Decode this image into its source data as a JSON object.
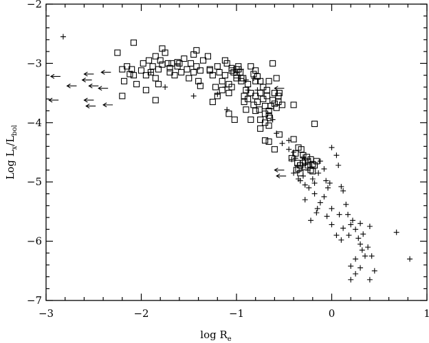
{
  "chart_data": {
    "type": "scatter",
    "title": "",
    "xlabel": {
      "main": "log R",
      "sub": "e"
    },
    "ylabel": {
      "main": "Log L",
      "sub1": "x",
      "sep": "/L",
      "sub2": "bol"
    },
    "xlim": [
      -3,
      1
    ],
    "ylim": [
      -7,
      -2
    ],
    "xticks": [
      -3,
      -2,
      -1,
      0,
      1
    ],
    "yticks": [
      -7,
      -6,
      -5,
      -4,
      -3,
      -2
    ],
    "xtick_labels": [
      "−3",
      "−2",
      "−1",
      "0",
      "1"
    ],
    "ytick_labels": [
      "−7",
      "−6",
      "−5",
      "−4",
      "−3",
      "−2"
    ],
    "grid": false,
    "legend": "none",
    "series": [
      {
        "marker": "square",
        "points": [
          [
            -2.25,
            -2.82
          ],
          [
            -2.08,
            -2.65
          ],
          [
            -2.15,
            -3.05
          ],
          [
            -2.12,
            -3.18
          ],
          [
            -2.18,
            -3.3
          ],
          [
            -2.2,
            -3.1
          ],
          [
            -2.05,
            -3.35
          ],
          [
            -2.2,
            -3.55
          ],
          [
            -2.08,
            -3.2
          ],
          [
            -2.0,
            -3.12
          ],
          [
            -1.98,
            -3.0
          ],
          [
            -1.92,
            -2.95
          ],
          [
            -1.88,
            -3.05
          ],
          [
            -1.85,
            -3.25
          ],
          [
            -1.95,
            -3.45
          ],
          [
            -1.82,
            -3.1
          ],
          [
            -1.8,
            -2.95
          ],
          [
            -1.78,
            -2.75
          ],
          [
            -1.75,
            -2.82
          ],
          [
            -1.72,
            -3.0
          ],
          [
            -1.7,
            -3.15
          ],
          [
            -1.82,
            -3.35
          ],
          [
            -1.68,
            -3.0
          ],
          [
            -1.65,
            -3.2
          ],
          [
            -1.62,
            -3.05
          ],
          [
            -1.6,
            -3.0
          ],
          [
            -1.78,
            -3.02
          ],
          [
            -1.85,
            -2.88
          ],
          [
            -1.58,
            -3.15
          ],
          [
            -1.55,
            -2.92
          ],
          [
            -1.52,
            -3.1
          ],
          [
            -1.5,
            -3.25
          ],
          [
            -1.48,
            -3.0
          ],
          [
            -1.45,
            -3.15
          ],
          [
            -1.42,
            -3.05
          ],
          [
            -1.4,
            -3.3
          ],
          [
            -1.38,
            -3.12
          ],
          [
            -1.42,
            -2.78
          ],
          [
            -1.3,
            -2.88
          ],
          [
            -1.28,
            -3.12
          ],
          [
            -1.25,
            -3.2
          ],
          [
            -1.22,
            -3.4
          ],
          [
            -1.2,
            -3.05
          ],
          [
            -1.18,
            -3.15
          ],
          [
            -1.15,
            -3.3
          ],
          [
            -1.12,
            -3.2
          ],
          [
            -1.1,
            -3.0
          ],
          [
            -1.08,
            -3.35
          ],
          [
            -1.05,
            -3.4
          ],
          [
            -1.03,
            -3.15
          ],
          [
            -1.0,
            -3.2
          ],
          [
            -0.98,
            -3.05
          ],
          [
            -0.95,
            -3.3
          ],
          [
            -0.92,
            -3.55
          ],
          [
            -0.9,
            -3.45
          ],
          [
            -0.88,
            -3.35
          ],
          [
            -0.85,
            -3.5
          ],
          [
            -0.82,
            -3.7
          ],
          [
            -0.8,
            -3.55
          ],
          [
            -0.78,
            -3.65
          ],
          [
            -0.75,
            -3.5
          ],
          [
            -0.72,
            -3.6
          ],
          [
            -0.7,
            -3.72
          ],
          [
            -0.68,
            -3.55
          ],
          [
            -0.66,
            -3.8
          ],
          [
            -0.65,
            -3.92
          ],
          [
            -0.64,
            -3.72
          ],
          [
            -0.62,
            -3.62
          ],
          [
            -0.6,
            -3.68
          ],
          [
            -0.58,
            -3.75
          ],
          [
            -0.56,
            -3.65
          ],
          [
            -0.55,
            -3.5
          ],
          [
            -0.88,
            -3.6
          ],
          [
            -0.9,
            -3.78
          ],
          [
            -1.02,
            -3.95
          ],
          [
            -1.08,
            -3.85
          ],
          [
            -1.25,
            -3.65
          ],
          [
            -1.12,
            -2.95
          ],
          [
            -1.05,
            -3.08
          ],
          [
            -0.98,
            -3.1
          ],
          [
            -0.93,
            -3.25
          ],
          [
            -0.96,
            -3.15
          ],
          [
            -1.0,
            -3.1
          ],
          [
            -0.8,
            -3.3
          ],
          [
            -0.72,
            -3.4
          ],
          [
            -0.68,
            -3.45
          ],
          [
            -0.66,
            -3.3
          ],
          [
            -0.6,
            -3.5
          ],
          [
            -0.56,
            -3.55
          ],
          [
            -0.52,
            -3.7
          ],
          [
            -0.7,
            -3.85
          ],
          [
            -0.76,
            -3.78
          ],
          [
            -0.66,
            -3.88
          ],
          [
            -0.7,
            -4.0
          ],
          [
            -0.66,
            -4.05
          ],
          [
            -0.92,
            -3.65
          ],
          [
            -0.95,
            -3.25
          ],
          [
            -1.0,
            -3.25
          ],
          [
            -1.05,
            -3.12
          ],
          [
            -0.85,
            -3.05
          ],
          [
            -0.82,
            -3.18
          ],
          [
            -0.78,
            -3.22
          ],
          [
            -0.75,
            -3.3
          ],
          [
            -0.8,
            -3.12
          ],
          [
            -0.62,
            -3.0
          ],
          [
            -0.58,
            -3.25
          ],
          [
            -0.75,
            -4.1
          ],
          [
            -0.7,
            -4.3
          ],
          [
            -0.66,
            -4.32
          ],
          [
            -0.6,
            -4.45
          ],
          [
            -0.55,
            -4.2
          ],
          [
            -0.4,
            -3.7
          ],
          [
            -0.18,
            -4.02
          ],
          [
            -0.2,
            -4.7
          ],
          [
            -0.22,
            -4.8
          ],
          [
            -0.25,
            -4.65
          ],
          [
            -0.28,
            -4.75
          ],
          [
            -0.3,
            -4.55
          ],
          [
            -0.32,
            -4.45
          ],
          [
            -0.36,
            -4.68
          ],
          [
            -0.38,
            -4.52
          ],
          [
            -0.42,
            -4.6
          ],
          [
            -0.35,
            -4.78
          ],
          [
            -0.33,
            -4.85
          ],
          [
            -0.28,
            -4.65
          ],
          [
            -0.25,
            -4.72
          ],
          [
            -0.22,
            -4.62
          ],
          [
            -0.18,
            -4.72
          ],
          [
            -0.2,
            -4.82
          ],
          [
            -0.16,
            -4.65
          ],
          [
            -0.26,
            -4.58
          ],
          [
            -0.3,
            -4.68
          ],
          [
            -0.33,
            -4.72
          ],
          [
            -0.37,
            -4.8
          ],
          [
            -0.35,
            -4.42
          ],
          [
            -0.4,
            -4.28
          ],
          [
            -1.45,
            -2.85
          ],
          [
            -1.35,
            -2.95
          ],
          [
            -1.28,
            -3.1
          ],
          [
            -1.62,
            -2.98
          ],
          [
            -1.7,
            -3.08
          ],
          [
            -1.9,
            -3.15
          ],
          [
            -1.95,
            -3.2
          ],
          [
            -2.1,
            -3.1
          ],
          [
            -1.85,
            -3.62
          ],
          [
            -1.38,
            -3.38
          ],
          [
            -1.15,
            -3.45
          ],
          [
            -1.2,
            -3.55
          ],
          [
            -1.08,
            -3.5
          ],
          [
            -0.85,
            -3.95
          ],
          [
            -0.8,
            -3.8
          ],
          [
            -0.75,
            -3.95
          ]
        ]
      },
      {
        "marker": "plus",
        "points": [
          [
            -2.82,
            -2.55
          ],
          [
            -1.75,
            -3.4
          ],
          [
            -1.9,
            -3.15
          ],
          [
            -1.45,
            -3.55
          ],
          [
            -1.2,
            -3.52
          ],
          [
            -1.1,
            -3.78
          ],
          [
            -1.12,
            -3.4
          ],
          [
            -0.88,
            -3.45
          ],
          [
            -0.9,
            -3.28
          ],
          [
            -0.95,
            -3.1
          ],
          [
            -0.82,
            -3.25
          ],
          [
            -0.78,
            -3.45
          ],
          [
            -0.62,
            -3.95
          ],
          [
            -0.58,
            -4.18
          ],
          [
            -0.52,
            -4.35
          ],
          [
            -0.45,
            -4.3
          ],
          [
            -0.38,
            -4.6
          ],
          [
            -0.36,
            -4.72
          ],
          [
            -0.3,
            -4.58
          ],
          [
            -0.4,
            -4.5
          ],
          [
            -0.3,
            -4.9
          ],
          [
            -0.35,
            -4.95
          ],
          [
            -0.28,
            -5.05
          ],
          [
            -0.25,
            -4.8
          ],
          [
            -0.2,
            -4.95
          ],
          [
            -0.18,
            -5.02
          ],
          [
            -0.14,
            -4.85
          ],
          [
            -0.12,
            -4.65
          ],
          [
            -0.08,
            -4.78
          ],
          [
            -0.06,
            -4.98
          ],
          [
            -0.04,
            -5.1
          ],
          [
            -0.02,
            -5.02
          ],
          [
            0.0,
            -4.42
          ],
          [
            0.05,
            -4.55
          ],
          [
            0.07,
            -4.72
          ],
          [
            0.1,
            -5.08
          ],
          [
            0.12,
            -5.15
          ],
          [
            0.15,
            -5.38
          ],
          [
            0.17,
            -5.55
          ],
          [
            0.2,
            -5.72
          ],
          [
            0.22,
            -5.65
          ],
          [
            0.25,
            -5.8
          ],
          [
            0.28,
            -5.95
          ],
          [
            0.3,
            -6.05
          ],
          [
            0.32,
            -6.15
          ],
          [
            0.35,
            -6.25
          ],
          [
            0.38,
            -6.1
          ],
          [
            0.42,
            -6.25
          ],
          [
            0.45,
            -6.5
          ],
          [
            0.4,
            -6.65
          ],
          [
            0.3,
            -6.45
          ],
          [
            0.25,
            -6.55
          ],
          [
            0.2,
            -6.65
          ],
          [
            0.1,
            -5.98
          ],
          [
            0.05,
            -5.9
          ],
          [
            0.0,
            -5.72
          ],
          [
            -0.05,
            -5.58
          ],
          [
            -0.12,
            -5.35
          ],
          [
            -0.15,
            -5.45
          ],
          [
            -0.18,
            -5.2
          ],
          [
            -0.24,
            -5.1
          ],
          [
            -0.28,
            -5.3
          ],
          [
            -0.22,
            -5.65
          ],
          [
            -0.16,
            -5.52
          ],
          [
            -0.08,
            -5.25
          ],
          [
            0.0,
            -5.45
          ],
          [
            0.08,
            -5.55
          ],
          [
            0.12,
            -5.78
          ],
          [
            0.18,
            -5.9
          ],
          [
            0.25,
            -6.3
          ],
          [
            0.2,
            -6.42
          ],
          [
            0.3,
            -5.7
          ],
          [
            0.33,
            -5.88
          ],
          [
            0.4,
            -5.75
          ],
          [
            0.68,
            -5.85
          ],
          [
            0.82,
            -6.3
          ],
          [
            -0.42,
            -4.62
          ],
          [
            -0.45,
            -4.45
          ],
          [
            -0.4,
            -4.85
          ],
          [
            -0.33,
            -4.98
          ]
        ]
      },
      {
        "marker": "left-arrow",
        "points": [
          [
            -2.95,
            -3.22
          ],
          [
            -2.6,
            -3.18
          ],
          [
            -2.42,
            -3.15
          ],
          [
            -2.62,
            -3.28
          ],
          [
            -2.78,
            -3.38
          ],
          [
            -2.55,
            -3.38
          ],
          [
            -2.45,
            -3.42
          ],
          [
            -2.97,
            -3.62
          ],
          [
            -2.6,
            -3.62
          ],
          [
            -2.58,
            -3.72
          ],
          [
            -2.4,
            -3.7
          ],
          [
            -0.6,
            -4.8
          ],
          [
            -0.58,
            -4.9
          ],
          [
            -0.6,
            -3.42
          ]
        ]
      }
    ]
  }
}
